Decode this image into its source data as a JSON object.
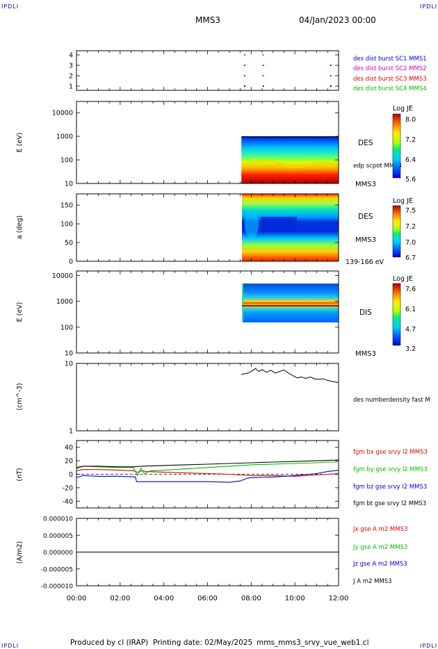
{
  "header": {
    "corner_tl": "IPDLI",
    "corner_tr": "IPDLI",
    "corner_bl": "IPDLI",
    "corner_br": "IPDLI",
    "spacecraft": "MMS3",
    "date": "04/Jan/2023 00:00"
  },
  "footer": {
    "produced_by": "Produced by cl (IRAP)",
    "printing_date": "Printing date: 02/May/2025",
    "file": "mms_mms3_srvy_vue_web1.cl"
  },
  "x_axis": {
    "ticks": [
      "00:00",
      "02:00",
      "04:00",
      "06:00",
      "08:00",
      "10:00",
      "12:00"
    ],
    "range_hours": [
      0,
      12
    ]
  },
  "colors": {
    "blue": "#0000cc",
    "magenta": "#cc00cc",
    "red": "#dd0000",
    "green": "#00bb00",
    "black": "#000000"
  },
  "chart_data": [
    {
      "id": "burst",
      "type": "scatter",
      "y_ticks": [
        "1",
        "2",
        "3",
        "4"
      ],
      "ylim": [
        0.6,
        4.4
      ],
      "legend": [
        {
          "label": "des dist burst SC1 MMS1",
          "color": "#0000cc"
        },
        {
          "label": "des dist burst SC2 MMS2",
          "color": "#cc00cc"
        },
        {
          "label": "des dist burst SC3 MMS3",
          "color": "#dd0000"
        },
        {
          "label": "des dist burst SC4 MMS4",
          "color": "#00bb00"
        }
      ],
      "series": [
        {
          "name": "des dist burst SC1 MMS1",
          "y": 1,
          "x": [
            7.7,
            8.55,
            11.65
          ]
        },
        {
          "name": "des dist burst SC2 MMS2",
          "y": 2,
          "x": [
            7.7,
            8.55,
            11.65
          ]
        },
        {
          "name": "des dist burst SC3 MMS3",
          "y": 3,
          "x": [
            7.7,
            8.55,
            11.65
          ]
        },
        {
          "name": "des dist burst SC4 MMS4",
          "y": 4,
          "x": [
            7.7,
            8.55
          ]
        }
      ]
    },
    {
      "id": "des_energy",
      "type": "heatmap",
      "ylabel": "E (eV)",
      "y_scale": "log",
      "ylim": [
        10,
        30000
      ],
      "y_ticks": [
        "10",
        "100",
        "1000",
        "10000"
      ],
      "colorbar": {
        "title": "Log JE",
        "ticks": [
          "8.0",
          "7.2",
          "6.4",
          "5.6"
        ],
        "range": [
          5.6,
          8.0
        ]
      },
      "labels": [
        "DES",
        "edp scpot MMS3",
        "MMS3"
      ],
      "data_x_start": 7.55,
      "data_x_end": 12,
      "data_y_top": 1000
    },
    {
      "id": "des_pitch",
      "type": "heatmap",
      "ylabel": "a (deg)",
      "ylim": [
        0,
        180
      ],
      "y_ticks": [
        "0",
        "50",
        "100",
        "150"
      ],
      "colorbar": {
        "title": "Log JE",
        "ticks": [
          "7.5",
          "7.2",
          "7.0",
          "6.7"
        ],
        "range": [
          6.7,
          7.5
        ]
      },
      "labels": [
        "DES",
        "MMS3",
        "139-166 eV"
      ],
      "data_x_start": 7.55,
      "data_x_end": 12
    },
    {
      "id": "dis_energy",
      "type": "heatmap",
      "ylabel": "E (eV)",
      "y_scale": "log",
      "ylim": [
        10,
        15000
      ],
      "y_ticks": [
        "10",
        "100",
        "1000",
        "10000"
      ],
      "colorbar": {
        "title": "Log JE",
        "ticks": [
          "7.6",
          "6.1",
          "4.7",
          "3.2"
        ],
        "range": [
          3.2,
          7.6
        ]
      },
      "labels": [
        "DIS",
        "MMS3"
      ],
      "data_x_start": 7.55,
      "data_x_end": 12,
      "data_y_range": [
        200,
        10000
      ]
    },
    {
      "id": "density",
      "type": "line",
      "ylabel": "(cm^-3)",
      "y_scale": "log",
      "ylim": [
        1,
        10
      ],
      "y_ticks": [
        "1",
        "10"
      ],
      "legend": [
        {
          "label": "des numberdensity fast M",
          "color": "#000000"
        }
      ],
      "series": [
        {
          "name": "des numberdensity fast M",
          "color": "#000000",
          "x": [
            7.55,
            7.8,
            8.0,
            8.2,
            8.35,
            8.5,
            8.7,
            8.9,
            9.1,
            9.3,
            9.5,
            9.7,
            9.9,
            10.1,
            10.3,
            10.5,
            10.7,
            10.9,
            11.1,
            11.3,
            11.5,
            11.7,
            12.0
          ],
          "y": [
            6.9,
            7.1,
            7.6,
            8.4,
            7.6,
            8.1,
            7.4,
            7.9,
            7.2,
            7.6,
            8.0,
            7.2,
            6.6,
            6.1,
            6.3,
            6.0,
            6.3,
            5.9,
            5.8,
            5.9,
            5.6,
            5.4,
            5.2
          ]
        }
      ]
    },
    {
      "id": "fgm",
      "type": "line",
      "ylabel": "(nT)",
      "ylim": [
        -50,
        50
      ],
      "y_ticks": [
        "-40",
        "-20",
        "0",
        "20",
        "40"
      ],
      "legend": [
        {
          "label": "fgm bx gse srvy l2 MMS3",
          "color": "#dd0000"
        },
        {
          "label": "fgm by gse srvy l2 MMS3",
          "color": "#00bb00"
        },
        {
          "label": "fgm bz gse srvy l2 MMS3",
          "color": "#0000cc"
        },
        {
          "label": "fgm bt gse srvy l2 MMS3",
          "color": "#000000"
        }
      ],
      "series": [
        {
          "name": "fgm bx gse srvy l2 MMS3",
          "color": "#dd0000",
          "x": [
            0,
            0.3,
            1,
            2,
            2.6,
            2.8,
            3.0,
            3.2,
            4,
            5,
            6,
            7,
            7.5,
            8,
            9,
            10,
            11,
            11.5,
            12
          ],
          "y": [
            5,
            7,
            7,
            6,
            5,
            3,
            5,
            4,
            3,
            2,
            1,
            0,
            -1,
            -2,
            -2,
            -3,
            -1,
            0,
            1
          ]
        },
        {
          "name": "fgm by gse srvy l2 MMS3",
          "color": "#00bb00",
          "x": [
            0,
            0.3,
            1,
            2,
            2.6,
            2.8,
            2.95,
            3.1,
            3.4,
            4,
            5,
            6,
            7,
            7.5,
            8,
            9,
            10,
            11,
            11.5,
            12
          ],
          "y": [
            8,
            12,
            11,
            10,
            10,
            -2,
            9,
            1,
            5,
            6,
            8,
            10,
            12,
            13,
            14,
            15,
            16,
            17,
            18,
            18
          ]
        },
        {
          "name": "fgm bz gse srvy l2 MMS3",
          "color": "#0000cc",
          "x": [
            0,
            0.3,
            1,
            2,
            2.7,
            2.75,
            3.2,
            4,
            5,
            6,
            7,
            7.5,
            7.8,
            8,
            9,
            10,
            11,
            11.5,
            12
          ],
          "y": [
            -5,
            -2,
            -3,
            -3,
            -4,
            -11,
            -11,
            -11,
            -11,
            -11,
            -12,
            -10,
            -6,
            -5,
            -4,
            -2,
            1,
            4,
            6
          ]
        },
        {
          "name": "fgm bt gse srvy l2 MMS3",
          "color": "#000000",
          "x": [
            0,
            0.3,
            1,
            2,
            2.6,
            3,
            4,
            5,
            6,
            7,
            8,
            9,
            10,
            11,
            12
          ],
          "y": [
            10,
            12,
            12,
            11,
            11,
            12,
            13,
            14,
            15,
            16,
            17,
            18,
            19,
            20,
            21
          ]
        }
      ]
    },
    {
      "id": "current",
      "type": "line",
      "ylabel": "(A/m2)",
      "ylim": [
        -1e-05,
        1e-05
      ],
      "y_ticks": [
        "-0.000010",
        "-0.000005",
        "0.000000",
        "0.000005",
        "0.000010"
      ],
      "legend": [
        {
          "label": "Jx gse A m2 MMS3",
          "color": "#dd0000"
        },
        {
          "label": "Jy gse A m2 MMS3",
          "color": "#00bb00"
        },
        {
          "label": "Jz gse A m2 MMS3",
          "color": "#0000cc"
        },
        {
          "label": "J A m2 MMS3",
          "color": "#000000"
        }
      ],
      "series": [
        {
          "name": "J A m2 MMS3",
          "color": "#000000",
          "x": [
            0,
            12
          ],
          "y": [
            0,
            0
          ]
        }
      ]
    }
  ]
}
